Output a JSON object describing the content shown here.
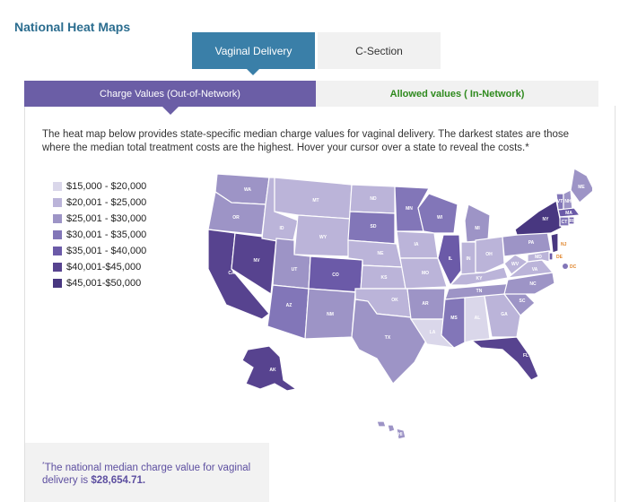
{
  "header": {
    "title": "National Heat Maps"
  },
  "procedure_tabs": [
    {
      "label": "Vaginal Delivery",
      "active": true
    },
    {
      "label": "C-Section",
      "active": false
    }
  ],
  "network_tabs": [
    {
      "label": "Charge Values (Out-of-Network)",
      "active": true
    },
    {
      "label": "Allowed values ( In-Network)",
      "active": false
    }
  ],
  "description": "The heat map below provides state-specific median charge values for vaginal delivery. The darkest states are those where the median total treatment costs are the highest. Hover your cursor over a state to reveal the costs.*",
  "legend": [
    {
      "label": "$15,000 - $20,000",
      "color": "#dad7ea"
    },
    {
      "label": "$20,001 - $25,000",
      "color": "#bbb4d9"
    },
    {
      "label": "$25,001 - $30,000",
      "color": "#9d94c6"
    },
    {
      "label": "$30,001 - $35,000",
      "color": "#8276b8"
    },
    {
      "label": "$35,001 - $40,000",
      "color": "#6b5aa8"
    },
    {
      "label": "$40,001-$45,000",
      "color": "#57438f"
    },
    {
      "label": "$45,001-$50,000",
      "color": "#483780"
    }
  ],
  "state_labels": {
    "WA": "WA",
    "OR": "OR",
    "CA": "CA",
    "NV": "NV",
    "ID": "ID",
    "MT": "MT",
    "WY": "WY",
    "UT": "UT",
    "AZ": "AZ",
    "CO": "CO",
    "NM": "NM",
    "ND": "ND",
    "SD": "SD",
    "NE": "NE",
    "KS": "KS",
    "OK": "OK",
    "TX": "TX",
    "MN": "MN",
    "IA": "IA",
    "MO": "MO",
    "AR": "AR",
    "LA": "LA",
    "WI": "WI",
    "IL": "IL",
    "MI": "MI",
    "IN": "IN",
    "OH": "OH",
    "KY": "KY",
    "TN": "TN",
    "MS": "MS",
    "AL": "AL",
    "GA": "GA",
    "FL": "FL",
    "SC": "SC",
    "NC": "NC",
    "VA": "VA",
    "WV": "WV",
    "PA": "PA",
    "NY": "NY",
    "ME": "ME",
    "VT": "VT",
    "NH": "NH",
    "MA": "MA",
    "CT": "CT",
    "RI": "RI",
    "NJ": "NJ",
    "DE": "DE",
    "MD": "MD",
    "DC": "DC",
    "AK": "AK",
    "HI": "HI"
  },
  "footnote": {
    "prefix": "*",
    "text": "The national median charge value for vaginal delivery is ",
    "value": "$28,654.71."
  }
}
